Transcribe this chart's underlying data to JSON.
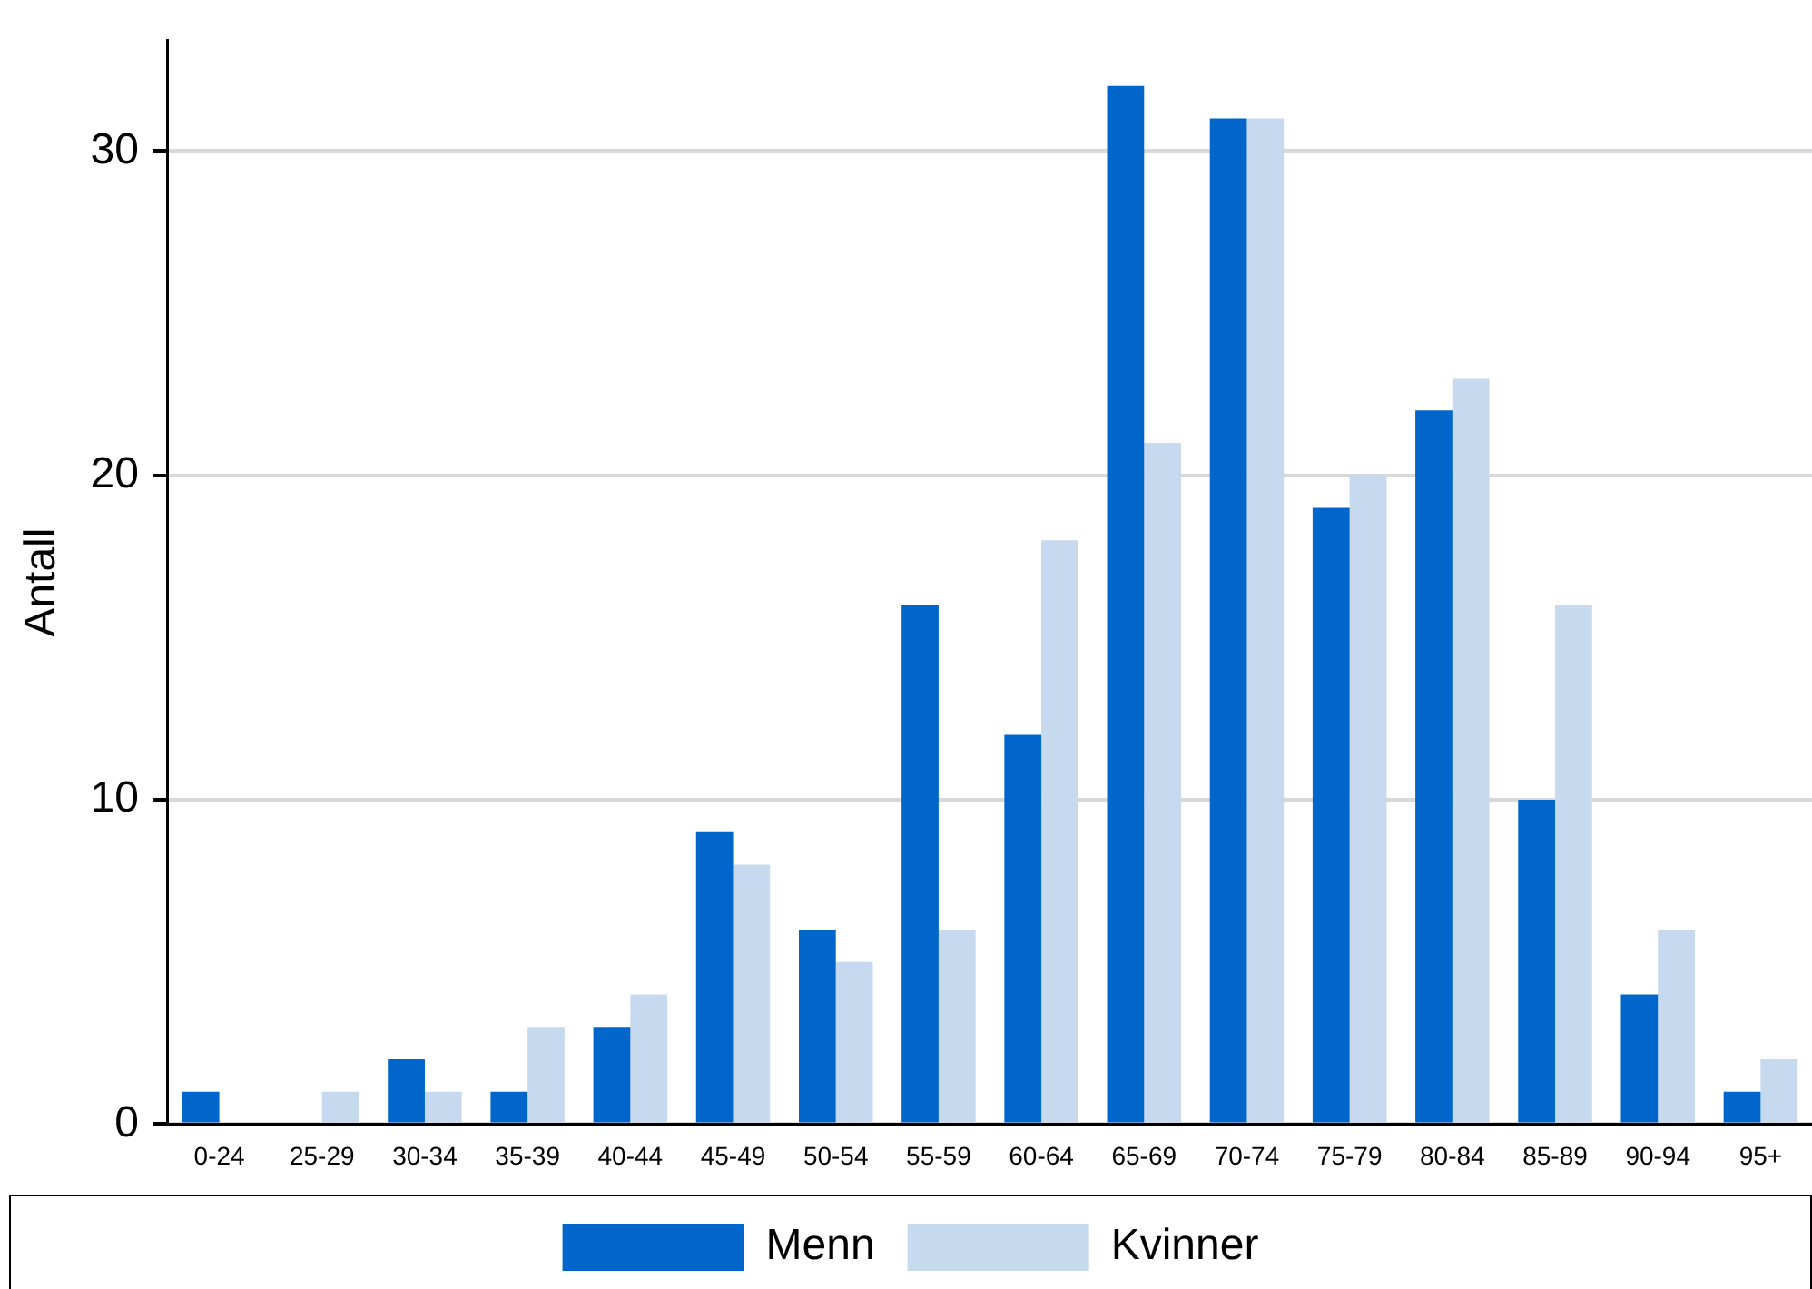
{
  "chart_data": {
    "type": "bar",
    "ylabel": "Antall",
    "categories": [
      "0-24",
      "25-29",
      "30-34",
      "35-39",
      "40-44",
      "45-49",
      "50-54",
      "55-59",
      "60-64",
      "65-69",
      "70-74",
      "75-79",
      "80-84",
      "85-89",
      "90-94",
      "95+"
    ],
    "series": [
      {
        "name": "Menn",
        "color": "#0066cc",
        "values": [
          1,
          0,
          2,
          1,
          3,
          9,
          6,
          16,
          12,
          32,
          31,
          19,
          22,
          10,
          4,
          1
        ]
      },
      {
        "name": "Kvinner",
        "color": "#c6d9ef",
        "values": [
          0,
          1,
          1,
          3,
          4,
          8,
          5,
          6,
          18,
          21,
          31,
          20,
          23,
          16,
          6,
          2
        ]
      }
    ],
    "ylim": [
      0,
      33.4
    ],
    "yticks": [
      0,
      10,
      20,
      30
    ],
    "grid": "y",
    "legend": "bottom"
  }
}
